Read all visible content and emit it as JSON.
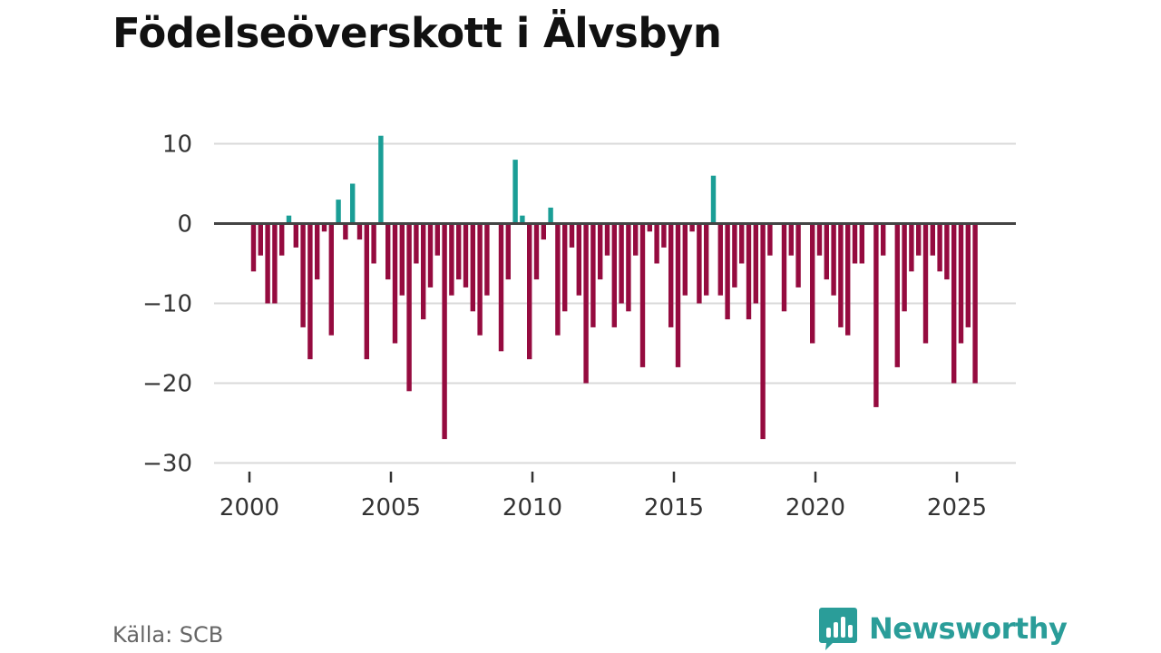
{
  "title": "Födelseöverskott i Älvsbyn",
  "source": "Källa: SCB",
  "brand": {
    "name": "Newsworthy",
    "logo_icon": "bar-chart-speech-bubble-icon"
  },
  "colors": {
    "positive": "#1a9e96",
    "negative": "#950b3f",
    "brand": "#2a9d99"
  },
  "chart_data": {
    "type": "bar",
    "title": "Födelseöverskott i Älvsbyn",
    "xlabel": "",
    "ylabel": "",
    "frequency": "quarterly",
    "start": "2000Q1",
    "xlim": [
      1999.3,
      2026.9
    ],
    "ylim": [
      -30,
      12
    ],
    "yticks": [
      10,
      0,
      -10,
      -20,
      -30
    ],
    "ytick_labels": [
      "10",
      "0",
      "−10",
      "−20",
      "−30"
    ],
    "xticks": [
      2000,
      2005,
      2010,
      2015,
      2020,
      2025
    ],
    "xtick_labels": [
      "2000",
      "2005",
      "2010",
      "2015",
      "2020",
      "2025"
    ],
    "grid": true,
    "legend": "none",
    "values": [
      -6,
      -4,
      -10,
      -10,
      -4,
      1,
      -3,
      -13,
      -17,
      -7,
      -1,
      -14,
      3,
      -2,
      5,
      -2,
      -17,
      -5,
      11,
      -7,
      -15,
      -9,
      -21,
      -5,
      -12,
      -8,
      -4,
      -27,
      -9,
      -7,
      -8,
      -11,
      -14,
      -9,
      0,
      -16,
      -7,
      8,
      1,
      -17,
      -7,
      -2,
      2,
      -14,
      -11,
      -3,
      -9,
      -20,
      -13,
      -7,
      -4,
      -13,
      -10,
      -11,
      -4,
      -18,
      -1,
      -5,
      -3,
      -13,
      -18,
      -9,
      -1,
      -10,
      -9,
      6,
      -9,
      -12,
      -8,
      -5,
      -12,
      -10,
      -27,
      -4,
      0,
      -11,
      -4,
      -8,
      0,
      -15,
      -4,
      -7,
      -9,
      -13,
      -14,
      -5,
      -5,
      0,
      -23,
      -4,
      0,
      -18,
      -11,
      -6,
      -4,
      -15,
      -4,
      -6,
      -7,
      -20,
      -15,
      -13,
      -20
    ]
  }
}
